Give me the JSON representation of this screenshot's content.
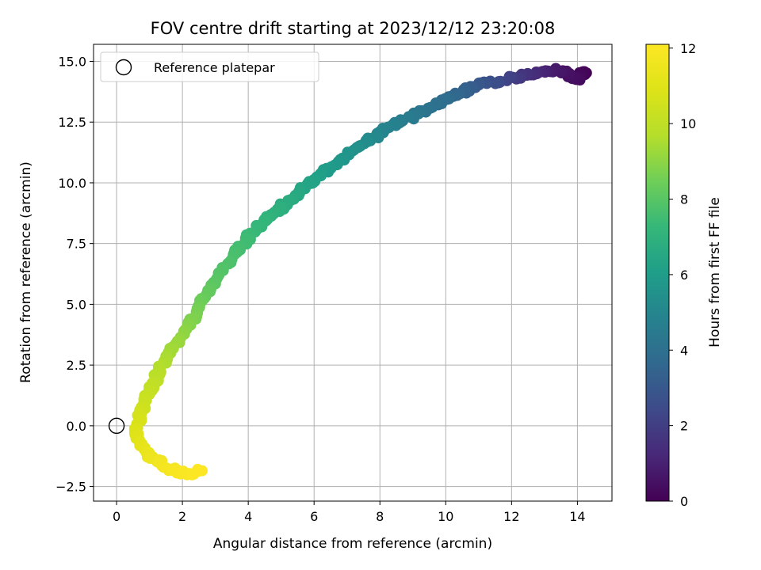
{
  "chart_data": {
    "type": "scatter",
    "title": "FOV centre drift starting at 2023/12/12 23:20:08",
    "xlabel": "Angular distance from reference (arcmin)",
    "ylabel": "Rotation from reference (arcmin)",
    "xlim": [
      -0.7,
      15.05
    ],
    "ylim": [
      -3.1,
      15.7
    ],
    "xticks": [
      0,
      2,
      4,
      6,
      8,
      10,
      12,
      14
    ],
    "xtick_labels": [
      "0",
      "2",
      "4",
      "6",
      "8",
      "10",
      "12",
      "14"
    ],
    "yticks": [
      -2.5,
      0,
      2.5,
      5,
      7.5,
      10,
      12.5,
      15
    ],
    "ytick_labels": [
      "−2.5",
      "0.0",
      "2.5",
      "5.0",
      "7.5",
      "10.0",
      "12.5",
      "15.0"
    ],
    "grid": true,
    "legend": {
      "placement": "top-left",
      "entries": [
        {
          "label": "Reference platepar",
          "marker": "open-circle"
        }
      ]
    },
    "reference_point": {
      "x": 0,
      "y": 0
    },
    "colorbar": {
      "label": "Hours from first FF file",
      "colormap": "viridis",
      "range": [
        0,
        12.1
      ],
      "ticks": [
        0,
        2,
        4,
        6,
        8,
        10,
        12
      ],
      "tick_labels": [
        "0",
        "2",
        "4",
        "6",
        "8",
        "10",
        "12"
      ]
    },
    "drift_track": {
      "color_by": "hours",
      "points": [
        {
          "x": 14.3,
          "y": 14.5,
          "hours": 0.0
        },
        {
          "x": 14.1,
          "y": 14.55,
          "hours": 0.15
        },
        {
          "x": 14.0,
          "y": 14.2,
          "hours": 0.3
        },
        {
          "x": 13.5,
          "y": 14.65,
          "hours": 0.6
        },
        {
          "x": 13.0,
          "y": 14.6,
          "hours": 1.0
        },
        {
          "x": 12.5,
          "y": 14.45,
          "hours": 1.5
        },
        {
          "x": 12.0,
          "y": 14.3,
          "hours": 2.0
        },
        {
          "x": 11.5,
          "y": 14.15,
          "hours": 2.5
        },
        {
          "x": 11.0,
          "y": 14.0,
          "hours": 3.0
        },
        {
          "x": 10.5,
          "y": 13.75,
          "hours": 3.4
        },
        {
          "x": 10.0,
          "y": 13.45,
          "hours": 3.8
        },
        {
          "x": 9.5,
          "y": 13.1,
          "hours": 4.1
        },
        {
          "x": 9.0,
          "y": 12.75,
          "hours": 4.4
        },
        {
          "x": 8.5,
          "y": 12.45,
          "hours": 4.7
        },
        {
          "x": 8.0,
          "y": 12.05,
          "hours": 5.0
        },
        {
          "x": 7.5,
          "y": 11.6,
          "hours": 5.3
        },
        {
          "x": 7.0,
          "y": 11.15,
          "hours": 5.6
        },
        {
          "x": 6.5,
          "y": 10.65,
          "hours": 5.9
        },
        {
          "x": 6.0,
          "y": 10.15,
          "hours": 6.2
        },
        {
          "x": 5.5,
          "y": 9.6,
          "hours": 6.5
        },
        {
          "x": 5.0,
          "y": 9.0,
          "hours": 6.8
        },
        {
          "x": 4.5,
          "y": 8.45,
          "hours": 7.1
        },
        {
          "x": 4.0,
          "y": 7.75,
          "hours": 7.4
        },
        {
          "x": 3.5,
          "y": 6.95,
          "hours": 7.7
        },
        {
          "x": 3.0,
          "y": 6.0,
          "hours": 8.0
        },
        {
          "x": 2.6,
          "y": 5.1,
          "hours": 8.4
        },
        {
          "x": 2.2,
          "y": 4.2,
          "hours": 8.8
        },
        {
          "x": 1.8,
          "y": 3.4,
          "hours": 9.2
        },
        {
          "x": 1.4,
          "y": 2.5,
          "hours": 9.6
        },
        {
          "x": 1.1,
          "y": 1.7,
          "hours": 10.0
        },
        {
          "x": 0.85,
          "y": 1.0,
          "hours": 10.3
        },
        {
          "x": 0.7,
          "y": 0.35,
          "hours": 10.6
        },
        {
          "x": 0.6,
          "y": -0.3,
          "hours": 10.9
        },
        {
          "x": 0.75,
          "y": -0.9,
          "hours": 11.2
        },
        {
          "x": 1.1,
          "y": -1.35,
          "hours": 11.5
        },
        {
          "x": 1.6,
          "y": -1.75,
          "hours": 11.8
        },
        {
          "x": 2.2,
          "y": -2.0,
          "hours": 12.0
        },
        {
          "x": 2.6,
          "y": -1.85,
          "hours": 12.1
        }
      ]
    }
  }
}
